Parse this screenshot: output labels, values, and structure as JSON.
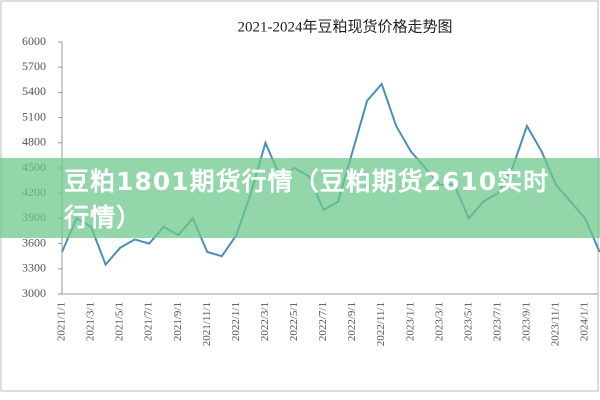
{
  "banner": "豆粕1801期货行情（豆粕期货2610实时行情）",
  "chart_data": {
    "type": "line",
    "title": "2021-2024年豆粕现货价格走势图",
    "categories": [
      "2021/1/1",
      null,
      "2021/3/1",
      null,
      "2021/5/1",
      null,
      "2021/7/1",
      null,
      "2021/9/1",
      null,
      "2021/11/1",
      null,
      "2022/1/1",
      null,
      "2022/3/1",
      null,
      "2022/5/1",
      null,
      "2022/7/1",
      null,
      "2022/9/1",
      null,
      "2022/11/1",
      null,
      "2023/1/1",
      null,
      "2023/3/1",
      null,
      "2023/5/1",
      null,
      "2023/7/1",
      null,
      "2023/9/1",
      null,
      "2023/11/1",
      null,
      "2024/1/1",
      null
    ],
    "values": [
      3500,
      3900,
      3800,
      3350,
      3550,
      3650,
      3600,
      3800,
      3700,
      3900,
      3500,
      3450,
      3700,
      4200,
      4800,
      4400,
      4500,
      4400,
      4000,
      4100,
      4700,
      5300,
      5500,
      5000,
      4700,
      4500,
      4300,
      4300,
      3900,
      4100,
      4200,
      4500,
      5000,
      4700,
      4300,
      4100,
      3900,
      3500
    ],
    "color": "#4a90b8",
    "ylim": [
      3000,
      6000
    ],
    "yticks": [
      3000,
      3300,
      3600,
      3900,
      4200,
      4500,
      4800,
      5100,
      5400,
      5700,
      6000
    ],
    "grid": false
  }
}
